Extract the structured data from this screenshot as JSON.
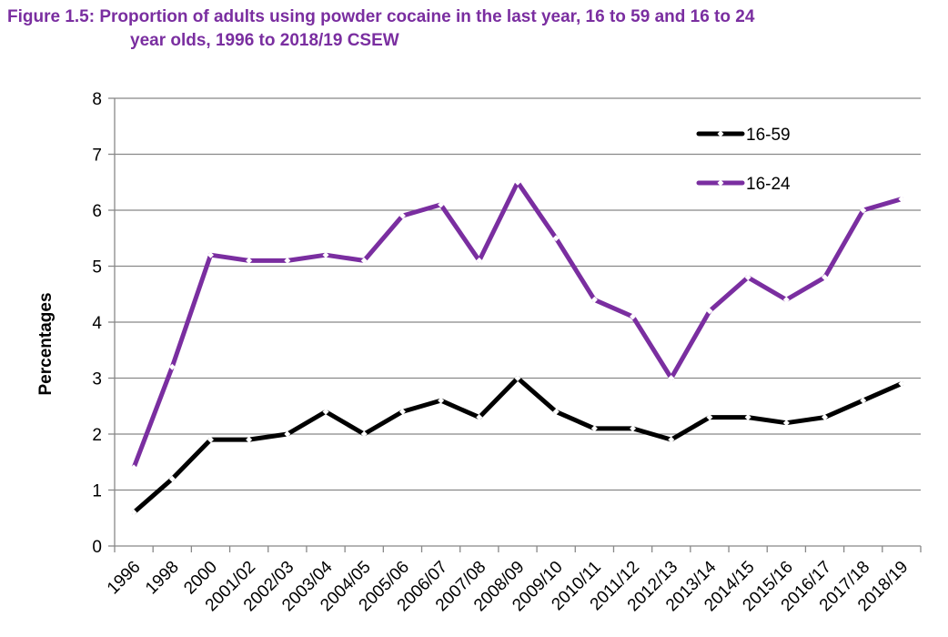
{
  "title": {
    "line1": "Figure 1.5: Proportion of adults using powder cocaine in the last year, 16 to 59 and 16 to 24",
    "line2": "year olds, 1996 to 2018/19 CSEW"
  },
  "chart_data": {
    "type": "line",
    "title": "Figure 1.5: Proportion of adults using powder cocaine in the last year, 16 to 59 and 16 to 24 year olds, 1996 to 2018/19 CSEW",
    "xlabel": "",
    "ylabel": "Percentages",
    "ylim": [
      0,
      8
    ],
    "yticks": [
      0,
      1,
      2,
      3,
      4,
      5,
      6,
      7,
      8
    ],
    "grid": true,
    "legend_position": "top-right",
    "categories": [
      "1996",
      "1998",
      "2000",
      "2001/02",
      "2002/03",
      "2003/04",
      "2004/05",
      "2005/06",
      "2006/07",
      "2007/08",
      "2008/09",
      "2009/10",
      "2010/11",
      "2011/12",
      "2012/13",
      "2013/14",
      "2014/15",
      "2015/16",
      "2016/17",
      "2017/18",
      "2018/19"
    ],
    "series": [
      {
        "name": "16-59",
        "color": "#000000",
        "values": [
          0.6,
          1.2,
          1.9,
          1.9,
          2.0,
          2.4,
          2.0,
          2.4,
          2.6,
          2.3,
          3.0,
          2.4,
          2.1,
          2.1,
          1.9,
          2.3,
          2.3,
          2.2,
          2.3,
          2.6,
          2.9
        ]
      },
      {
        "name": "16-24",
        "color": "#7a2ea0",
        "values": [
          1.4,
          3.2,
          5.2,
          5.1,
          5.1,
          5.2,
          5.1,
          5.9,
          6.1,
          5.1,
          6.5,
          5.5,
          4.4,
          4.1,
          3.0,
          4.2,
          4.8,
          4.4,
          4.8,
          6.0,
          6.2
        ]
      }
    ]
  }
}
